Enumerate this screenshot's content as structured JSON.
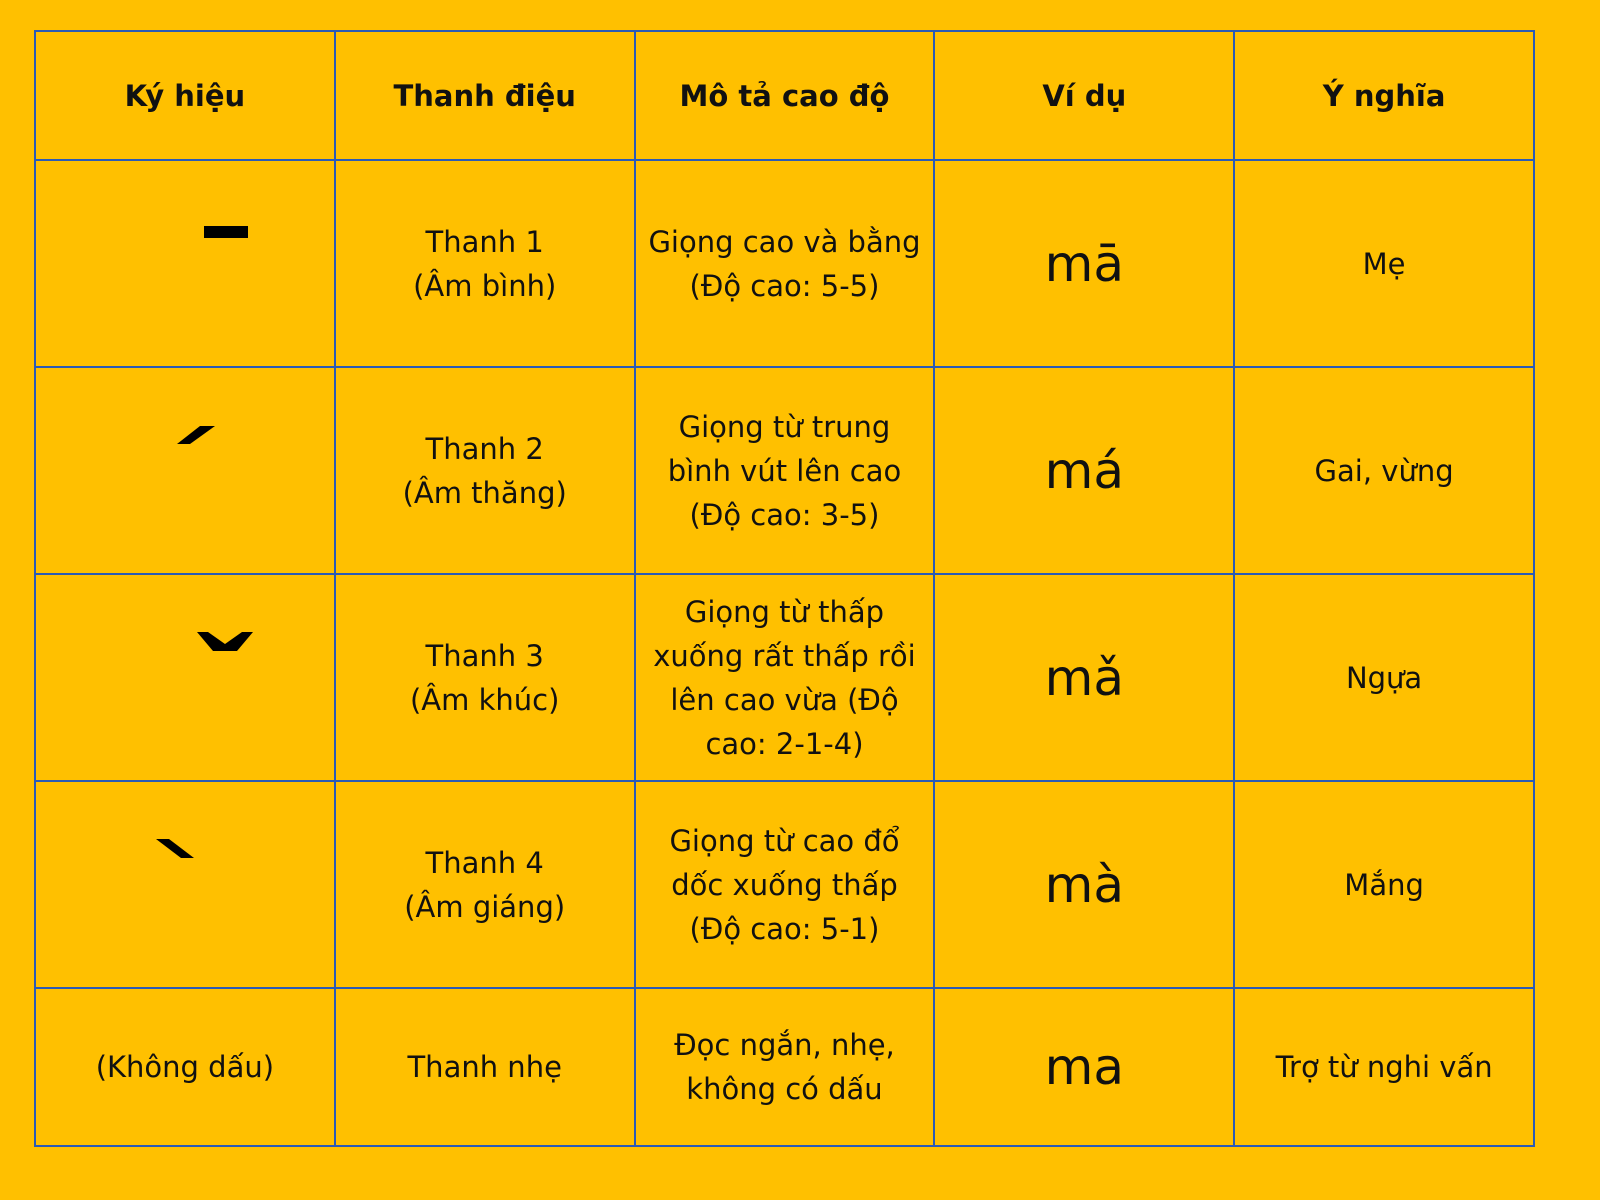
{
  "headers": [
    "Ký hiệu",
    "Thanh điệu",
    "Mô tả cao độ",
    "Ví dụ",
    "Ý nghĩa"
  ],
  "rows": [
    {
      "symbol_icon": "macron-flat-tone-icon",
      "tone": "Thanh 1",
      "tone_name": "(Âm bình)",
      "description": "Giọng cao và bằng (Độ cao: 5-5)",
      "example": "mā",
      "meaning": "Mẹ"
    },
    {
      "symbol_icon": "acute-rising-tone-icon",
      "tone": "Thanh 2",
      "tone_name": "(Âm thăng)",
      "description": "Giọng từ trung bình vút lên cao (Độ cao: 3-5)",
      "example": "má",
      "meaning": "Gai, vừng"
    },
    {
      "symbol_icon": "caron-dipping-tone-icon",
      "tone": "Thanh 3",
      "tone_name": "(Âm khúc)",
      "description": "Giọng từ thấp xuống rất thấp rồi lên cao vừa (Độ cao: 2-1-4)",
      "example": "mǎ",
      "meaning": "Ngựa"
    },
    {
      "symbol_icon": "grave-falling-tone-icon",
      "tone": "Thanh 4",
      "tone_name": "(Âm giáng)",
      "description": "Giọng từ cao đổ dốc xuống thấp (Độ cao: 5-1)",
      "example": "mà",
      "meaning": "Mắng"
    },
    {
      "symbol": "(Không dấu)",
      "tone": "Thanh nhẹ",
      "description": "Đọc ngắn, nhẹ, không có dấu",
      "example": "ma",
      "meaning": "Trợ từ nghi vấn"
    }
  ],
  "colors": {
    "background": "#FFC000",
    "border": "#2B5BB5"
  }
}
